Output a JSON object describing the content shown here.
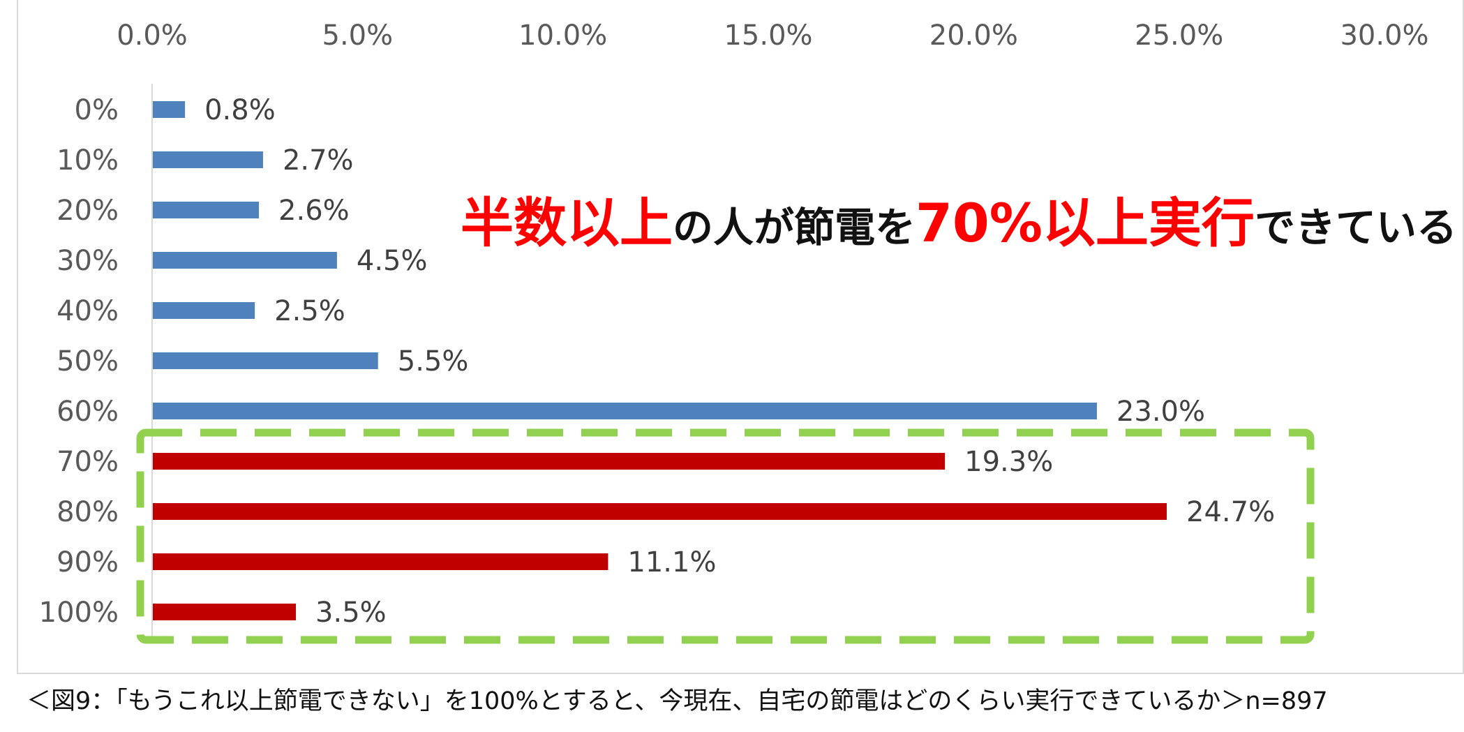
{
  "chart_data": {
    "type": "bar",
    "orientation": "horizontal",
    "categories": [
      "0%",
      "10%",
      "20%",
      "30%",
      "40%",
      "50%",
      "60%",
      "70%",
      "80%",
      "90%",
      "100%"
    ],
    "values": [
      0.8,
      2.7,
      2.6,
      4.5,
      2.5,
      5.5,
      23.0,
      19.3,
      24.7,
      11.1,
      3.5
    ],
    "value_labels": [
      "0.8%",
      "2.7%",
      "2.6%",
      "4.5%",
      "2.5%",
      "5.5%",
      "23.0%",
      "19.3%",
      "24.7%",
      "11.1%",
      "3.5%"
    ],
    "x_ticks": [
      "0.0%",
      "5.0%",
      "10.0%",
      "15.0%",
      "20.0%",
      "25.0%",
      "30.0%"
    ],
    "xlim": [
      0,
      30
    ],
    "x_axis_position": "top",
    "grid": false,
    "colors": {
      "default_bar": "#4f81bd",
      "highlight_bar": "#c00000",
      "highlight_box": "#92d050",
      "headline_accent": "#ff0000"
    },
    "highlighted_categories": [
      "70%",
      "80%",
      "90%",
      "100%"
    ],
    "annotation": {
      "part1": "半数以上",
      "part2": "の人が節電を",
      "part3": "70%以上実行",
      "part4": "できている"
    }
  },
  "caption": "＜図9：「もうこれ以上節電できない」を100%とすると、今現在、自宅の節電はどのくらい実行できているか＞n=897"
}
